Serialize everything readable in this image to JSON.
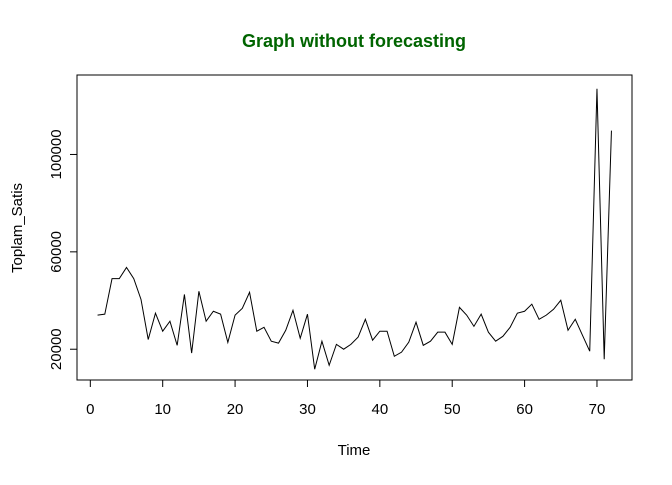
{
  "chart_data": {
    "type": "line",
    "title": "Graph without forecasting",
    "title_color": "#006400",
    "x_label": "Time",
    "y_label": "Toplam_Satis",
    "x": [
      1,
      2,
      3,
      4,
      5,
      6,
      7,
      8,
      9,
      10,
      11,
      12,
      13,
      14,
      15,
      16,
      17,
      18,
      19,
      20,
      21,
      22,
      23,
      24,
      25,
      26,
      27,
      28,
      29,
      30,
      31,
      32,
      33,
      34,
      35,
      36,
      37,
      38,
      39,
      40,
      41,
      42,
      43,
      44,
      45,
      46,
      47,
      48,
      49,
      50,
      51,
      52,
      53,
      54,
      55,
      56,
      57,
      58,
      59,
      60,
      61,
      62,
      63,
      64,
      65,
      66,
      67,
      68,
      69,
      70,
      71,
      72
    ],
    "series": [
      {
        "name": "Toplam_Satis",
        "color": "#000000",
        "values": [
          34000,
          34400,
          49000,
          49000,
          53600,
          49000,
          40500,
          24000,
          34800,
          27400,
          31500,
          21600,
          42500,
          18400,
          43800,
          31500,
          35600,
          34400,
          22800,
          34000,
          36800,
          43400,
          27400,
          29000,
          23300,
          22500,
          27800,
          36000,
          24500,
          34400,
          11800,
          23300,
          13400,
          22000,
          20000,
          22000,
          25000,
          32300,
          23700,
          27400,
          27400,
          17100,
          18800,
          22900,
          31100,
          21600,
          23300,
          27000,
          27000,
          22000,
          37200,
          34000,
          29400,
          34400,
          27000,
          23300,
          25300,
          29000,
          34800,
          35600,
          38500,
          32300,
          34000,
          36400,
          40100,
          27800,
          32300,
          25700,
          19200,
          127000,
          15900,
          109800
        ]
      }
    ],
    "xlim": [
      -1.84,
      74.84
    ],
    "xticks": [
      0,
      10,
      20,
      30,
      40,
      50,
      60,
      70
    ],
    "ylim": [
      7360,
      132640
    ],
    "yticks": [
      20000,
      60000,
      100000
    ]
  }
}
